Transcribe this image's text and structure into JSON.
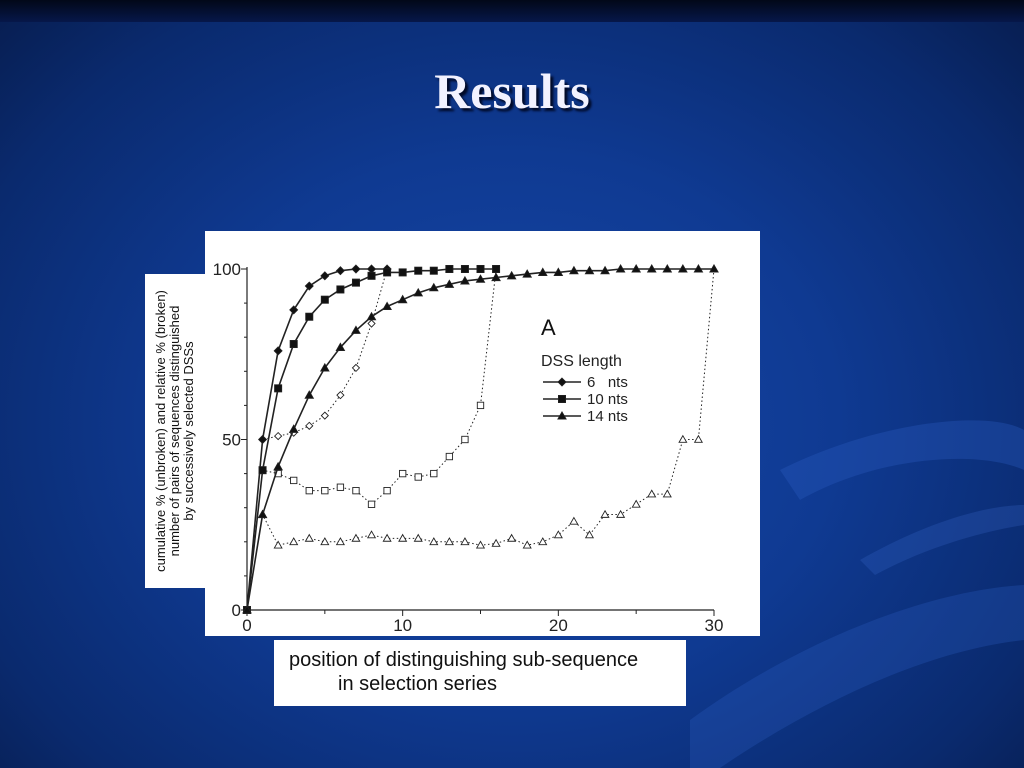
{
  "slide": {
    "title": "Results"
  },
  "chart_data": {
    "type": "line",
    "panel_label": "A",
    "ylabel": "cumulative % (unbroken) and relative % (broken) number of pairs of sequences distinguished by successively selected DSSs",
    "ylabel_lines": [
      "cumulative % (unbroken) and relative % (broken)",
      "number of pairs of sequences distinguished",
      "by successively selected DSSs"
    ],
    "xlabel_lines": [
      "position of distinguishing sub-sequence",
      "in selection series"
    ],
    "xlim": [
      0,
      30
    ],
    "ylim": [
      0,
      100
    ],
    "x_ticks": [
      "0",
      "10",
      "20",
      "30"
    ],
    "y_ticks": [
      "0",
      "50",
      "100"
    ],
    "legend": {
      "title": "DSS length",
      "position": "upper-right",
      "entries": [
        {
          "label": "6   nts",
          "marker": "diamond"
        },
        {
          "label": "10 nts",
          "marker": "square"
        },
        {
          "label": "14 nts",
          "marker": "triangle"
        }
      ]
    },
    "series": [
      {
        "key": "6nts-cumulative",
        "style": "solid",
        "marker": "diamond",
        "x": [
          0,
          1,
          2,
          3,
          4,
          5,
          6,
          7,
          8,
          9
        ],
        "y": [
          0,
          50,
          76,
          88,
          95,
          98,
          99.5,
          100,
          100,
          100
        ]
      },
      {
        "key": "10nts-cumulative",
        "style": "solid",
        "marker": "square",
        "x": [
          0,
          1,
          2,
          3,
          4,
          5,
          6,
          7,
          8,
          9,
          10,
          11,
          12,
          13,
          14,
          15,
          16
        ],
        "y": [
          0,
          41,
          65,
          78,
          86,
          91,
          94,
          96,
          98,
          99,
          99,
          99.5,
          99.5,
          100,
          100,
          100,
          100
        ]
      },
      {
        "key": "14nts-cumulative",
        "style": "solid",
        "marker": "triangle",
        "x": [
          0,
          1,
          2,
          3,
          4,
          5,
          6,
          7,
          8,
          9,
          10,
          11,
          12,
          13,
          14,
          15,
          16,
          17,
          18,
          19,
          20,
          21,
          22,
          23,
          24,
          25,
          26,
          27,
          28,
          29,
          30
        ],
        "y": [
          0,
          28,
          42,
          53,
          63,
          71,
          77,
          82,
          86,
          89,
          91,
          93,
          94.5,
          95.5,
          96.5,
          97,
          97.5,
          98,
          98.5,
          99,
          99,
          99.5,
          99.5,
          99.5,
          100,
          100,
          100,
          100,
          100,
          100,
          100
        ]
      },
      {
        "key": "6nts-relative",
        "style": "dotted",
        "marker": "diamond-open",
        "x": [
          0,
          1,
          2,
          3,
          4,
          5,
          6,
          7,
          8,
          9
        ],
        "y": [
          0,
          50,
          51,
          52,
          54,
          57,
          63,
          71,
          84,
          100
        ]
      },
      {
        "key": "10nts-relative",
        "style": "dotted",
        "marker": "square-open",
        "x": [
          0,
          1,
          2,
          3,
          4,
          5,
          6,
          7,
          8,
          9,
          10,
          11,
          12,
          13,
          14,
          15,
          16
        ],
        "y": [
          0,
          41,
          40,
          38,
          35,
          35,
          36,
          35,
          31,
          35,
          40,
          39,
          40,
          45,
          50,
          60,
          100
        ]
      },
      {
        "key": "14nts-relative",
        "style": "dotted",
        "marker": "triangle-open",
        "x": [
          0,
          1,
          2,
          3,
          4,
          5,
          6,
          7,
          8,
          9,
          10,
          11,
          12,
          13,
          14,
          15,
          16,
          17,
          18,
          19,
          20,
          21,
          22,
          23,
          24,
          25,
          26,
          27,
          28,
          29,
          30
        ],
        "y": [
          0,
          28,
          19,
          20,
          21,
          20,
          20,
          21,
          22,
          21,
          21,
          21,
          20,
          20,
          20,
          19,
          19.5,
          21,
          19,
          20,
          22,
          26,
          22,
          28,
          28,
          31,
          34,
          34,
          50,
          50,
          100
        ]
      }
    ]
  }
}
